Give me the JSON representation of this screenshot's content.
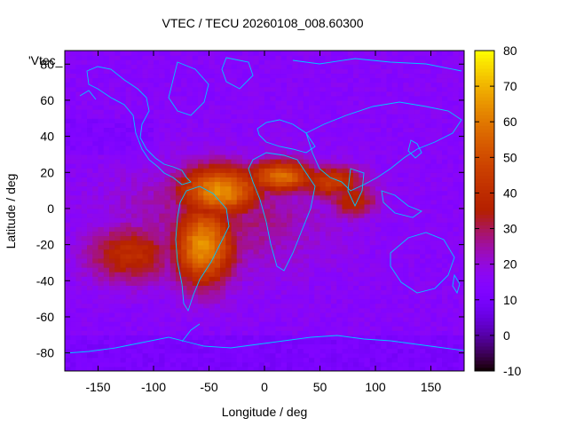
{
  "chart_data": {
    "type": "heatmap",
    "title": "VTEC / TECU 20260108_008.60300",
    "xlabel": "Longitude / deg",
    "ylabel": "Latitude / deg",
    "xlim": [
      -180,
      180
    ],
    "ylim": [
      -90,
      87.5
    ],
    "x_ticks": [
      -150,
      -100,
      -50,
      0,
      50,
      100,
      150
    ],
    "y_ticks": [
      -80,
      -60,
      -40,
      -20,
      0,
      20,
      40,
      60,
      80
    ],
    "x_tick_labels": [
      "-150",
      "-100",
      "-50",
      "0",
      "50",
      "100",
      "150"
    ],
    "y_tick_labels": [
      "-80",
      "-60",
      "-40",
      "-20",
      "0",
      "20",
      "40",
      "60",
      "80"
    ],
    "legend_label": "'Vtec_",
    "colorbar": {
      "min": -10,
      "max": 80,
      "ticks": [
        -10,
        0,
        10,
        20,
        30,
        40,
        50,
        60,
        70,
        80
      ],
      "tick_labels": [
        "-10",
        "0",
        "10",
        "20",
        "30",
        "40",
        "50",
        "60",
        "70",
        "80"
      ],
      "palette": "gnuplot-pm3d"
    },
    "background_level": 15,
    "features": [
      {
        "name": "equatorial anomaly core",
        "lon": -40,
        "lat": 10,
        "peak_tecu": 65
      },
      {
        "name": "south american crest",
        "lon": -55,
        "lat": -20,
        "peak_tecu": 65
      },
      {
        "name": "atlantic north crest",
        "lon": 15,
        "lat": 18,
        "peak_tecu": 58
      },
      {
        "name": "african extension",
        "lon": 60,
        "lat": 15,
        "peak_tecu": 45
      },
      {
        "name": "indian ocean extension",
        "lon": 80,
        "lat": 5,
        "peak_tecu": 38
      },
      {
        "name": "pacific southern arm",
        "lon": -120,
        "lat": -25,
        "peak_tecu": 40
      }
    ]
  }
}
